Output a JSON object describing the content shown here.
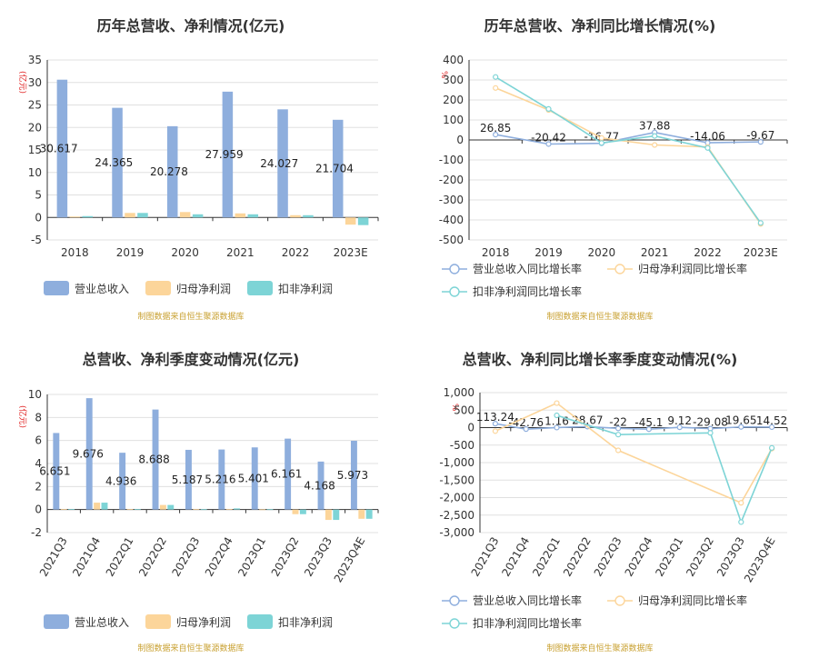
{
  "colors": {
    "revenue": "#8eaedd",
    "net_profit": "#fcd59a",
    "deducted_profit": "#7dd4d6",
    "revenue_line": "#8eaedd",
    "net_line": "#fcd59a",
    "deducted_line": "#7dd4d6",
    "source_text": "#c8a030"
  },
  "chart_data": [
    {
      "id": "annual-bar",
      "type": "bar",
      "title": "历年总营收、净利情况(亿元)",
      "ylabel": "(亿元)",
      "categories": [
        "2018",
        "2019",
        "2020",
        "2021",
        "2022",
        "2023E"
      ],
      "series": [
        {
          "name": "营业总收入",
          "values": [
            30.617,
            24.365,
            20.278,
            27.959,
            24.027,
            21.704
          ],
          "labels": [
            "30.617",
            "24.365",
            "20.278",
            "27.959",
            "24.027",
            "21.704"
          ]
        },
        {
          "name": "归母净利润",
          "values": [
            0.2,
            1.0,
            1.2,
            0.9,
            0.5,
            -1.6
          ]
        },
        {
          "name": "扣非净利润",
          "values": [
            0.3,
            1.0,
            0.7,
            0.7,
            0.5,
            -1.7
          ]
        }
      ],
      "ylim": [
        -5,
        35
      ],
      "yticks": [
        -5,
        0,
        5,
        10,
        15,
        20,
        25,
        30,
        35
      ],
      "source": "制图数据来自恒生聚源数据库"
    },
    {
      "id": "annual-growth",
      "type": "line",
      "title": "历年总营收、净利同比增长情况(%)",
      "ylabel": "%",
      "categories": [
        "2018",
        "2019",
        "2020",
        "2021",
        "2022",
        "2023E"
      ],
      "series": [
        {
          "name": "营业总收入同比增长率",
          "values": [
            26.85,
            -20.42,
            -16.77,
            37.88,
            -14.06,
            -9.67
          ],
          "labels": [
            "26.85",
            "-20.42",
            "-16.77",
            "37.88",
            "-14.06",
            "-9.67"
          ]
        },
        {
          "name": "归母净利润同比增长率",
          "values": [
            260,
            150,
            10,
            -25,
            -35,
            -420
          ]
        },
        {
          "name": "扣非净利润同比增长率",
          "values": [
            315,
            155,
            -15,
            20,
            -40,
            -415
          ]
        }
      ],
      "ylim": [
        -500,
        400
      ],
      "yticks": [
        -500,
        -400,
        -300,
        -200,
        -100,
        0,
        100,
        200,
        300,
        400
      ],
      "source": "制图数据来自恒生聚源数据库"
    },
    {
      "id": "quarter-bar",
      "type": "bar",
      "title": "总营收、净利季度变动情况(亿元)",
      "ylabel": "(亿元)",
      "categories": [
        "2021Q3",
        "2021Q4",
        "2022Q1",
        "2022Q2",
        "2022Q3",
        "2022Q4",
        "2023Q1",
        "2023Q2",
        "2023Q3",
        "2023Q4E"
      ],
      "series": [
        {
          "name": "营业总收入",
          "values": [
            6.651,
            9.676,
            4.936,
            8.688,
            5.187,
            5.216,
            5.401,
            6.161,
            4.168,
            5.973
          ],
          "labels": [
            "6.651",
            "9.676",
            "4.936",
            "8.688",
            "5.187",
            "5.216",
            "5.401",
            "6.161",
            "4.168",
            "5.973"
          ]
        },
        {
          "name": "归母净利润",
          "values": [
            0.05,
            0.6,
            0.05,
            0.4,
            0.05,
            0.05,
            0.02,
            -0.4,
            -0.9,
            -0.8
          ]
        },
        {
          "name": "扣非净利润",
          "values": [
            0.05,
            0.6,
            0.05,
            0.4,
            0.03,
            0.1,
            0.03,
            -0.4,
            -0.9,
            -0.8
          ]
        }
      ],
      "ylim": [
        -2,
        10
      ],
      "yticks": [
        -2,
        0,
        2,
        4,
        6,
        8,
        10
      ],
      "source": "制图数据来自恒生聚源数据库"
    },
    {
      "id": "quarter-growth",
      "type": "line",
      "title": "总营收、净利同比增长率季度变动情况(%)",
      "ylabel": "%",
      "categories": [
        "2021Q3",
        "2021Q4",
        "2022Q1",
        "2022Q2",
        "2022Q3",
        "2022Q4",
        "2023Q1",
        "2023Q2",
        "2023Q3",
        "2023Q4E"
      ],
      "series": [
        {
          "name": "营业总收入同比增长率",
          "values": [
            113.24,
            -42.76,
            1.16,
            28.67,
            -22,
            -45.1,
            9.12,
            -29.08,
            19.65,
            14.52
          ],
          "labels": [
            "113.24",
            "-42.76",
            "1.16",
            "28.67",
            "-22",
            "-45.1",
            "9.12",
            "-29.08",
            "19.65",
            "14.52"
          ]
        },
        {
          "name": "归母净利润同比增长率",
          "values": [
            -100,
            null,
            700,
            null,
            -650,
            null,
            null,
            null,
            -2150,
            -600
          ]
        },
        {
          "name": "扣非净利润同比增长率",
          "values": [
            null,
            null,
            350,
            null,
            -200,
            null,
            null,
            -150,
            -2700,
            -580
          ]
        }
      ],
      "ylim": [
        -3000,
        1000
      ],
      "yticks": [
        -3000,
        -2500,
        -2000,
        -1500,
        -1000,
        -500,
        0,
        500,
        1000
      ],
      "ytick_labels": [
        "-3,000",
        "-2,500",
        "-2,000",
        "-1,500",
        "-1,000",
        "-500",
        "0",
        "500",
        "1,000"
      ],
      "source": "制图数据来自恒生聚源数据库"
    }
  ]
}
